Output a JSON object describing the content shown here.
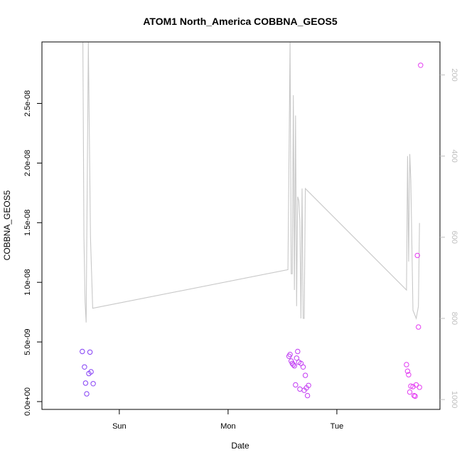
{
  "chart_data": {
    "type": "scatter",
    "title": "ATOM1 North_America COBBNA_GEOS5",
    "xlabel": "Date",
    "ylabel": "COBBNA_GEOS5",
    "x_ticks": [
      "Sun",
      "Mon",
      "Tue"
    ],
    "x_ticks_at_days": [
      1,
      2,
      3
    ],
    "x_range_days": [
      0.38,
      3.85
    ],
    "ylim": [
      0,
      2.95e-08
    ],
    "y_ticks": [
      {
        "value": 0,
        "label": "0.0e+00"
      },
      {
        "value": 5e-09,
        "label": "5.0e-09"
      },
      {
        "value": 1e-08,
        "label": "1.0e-08"
      },
      {
        "value": 1.5e-08,
        "label": "1.5e-08"
      },
      {
        "value": 2e-08,
        "label": "2.0e-08"
      },
      {
        "value": 2.5e-08,
        "label": "2.5e-08"
      }
    ],
    "y2_ticks": [
      200,
      400,
      600,
      800,
      1000
    ],
    "y2_range": [
      1005,
      138
    ],
    "y2_reversed": true,
    "grid": false,
    "colors": {
      "axis": "#000000",
      "secondary_axis": "#bfbfbf",
      "line": "#c8c8c8",
      "points_start": "#7a3ff5",
      "points_end": "#e83cf2"
    },
    "series": [
      {
        "kind": "points",
        "points": [
          [
            0.66,
            4.2e-09
          ],
          [
            0.68,
            2.9e-09
          ],
          [
            0.69,
            1.55e-09
          ],
          [
            0.7,
            6.5e-10
          ],
          [
            0.72,
            2.35e-09
          ],
          [
            0.73,
            4.15e-09
          ],
          [
            0.74,
            2.5e-09
          ],
          [
            0.76,
            1.5e-09
          ],
          [
            2.56,
            3.8e-09
          ],
          [
            2.57,
            3.95e-09
          ],
          [
            2.58,
            3.4e-09
          ],
          [
            2.59,
            3.2e-09
          ],
          [
            2.6,
            3.1e-09
          ],
          [
            2.61,
            3e-09
          ],
          [
            2.62,
            1.4e-09
          ],
          [
            2.63,
            3.65e-09
          ],
          [
            2.64,
            4.2e-09
          ],
          [
            2.65,
            3.3e-09
          ],
          [
            2.66,
            1.05e-09
          ],
          [
            2.67,
            3.2e-09
          ],
          [
            2.69,
            2.9e-09
          ],
          [
            2.7,
            9.5e-10
          ],
          [
            2.71,
            2.2e-09
          ],
          [
            2.72,
            1.15e-09
          ],
          [
            2.73,
            5e-10
          ],
          [
            2.74,
            1.35e-09
          ],
          [
            3.64,
            3.1e-09
          ],
          [
            3.65,
            2.55e-09
          ],
          [
            3.66,
            2.25e-09
          ],
          [
            3.67,
            8e-10
          ],
          [
            3.68,
            1.3e-09
          ],
          [
            3.7,
            1.25e-09
          ],
          [
            3.71,
            5e-10
          ],
          [
            3.72,
            4.5e-10
          ],
          [
            3.73,
            1.4e-09
          ],
          [
            3.74,
            1.225e-08
          ],
          [
            3.75,
            6.25e-09
          ],
          [
            3.76,
            1.2e-09
          ],
          [
            3.77,
            2.82e-08
          ]
        ]
      },
      {
        "kind": "line",
        "axis": "right",
        "points": [
          [
            0.665,
            120
          ],
          [
            0.675,
            600
          ],
          [
            0.685,
            760
          ],
          [
            0.695,
            810
          ],
          [
            0.715,
            120
          ],
          [
            0.735,
            600
          ],
          [
            0.755,
            775
          ],
          [
            2.55,
            680
          ],
          [
            2.57,
            120
          ],
          [
            2.58,
            690
          ],
          [
            2.59,
            690
          ],
          [
            2.6,
            250
          ],
          [
            2.61,
            730
          ],
          [
            2.62,
            300
          ],
          [
            2.63,
            770
          ],
          [
            2.64,
            500
          ],
          [
            2.65,
            510
          ],
          [
            2.66,
            560
          ],
          [
            2.67,
            800
          ],
          [
            2.68,
            480
          ],
          [
            2.69,
            800
          ],
          [
            2.7,
            800
          ],
          [
            2.71,
            480
          ],
          [
            3.64,
            730
          ],
          [
            3.65,
            400
          ],
          [
            3.66,
            660
          ],
          [
            3.67,
            395
          ],
          [
            3.68,
            460
          ],
          [
            3.7,
            780
          ],
          [
            3.73,
            800
          ],
          [
            3.75,
            770
          ],
          [
            3.76,
            565
          ]
        ]
      }
    ]
  }
}
